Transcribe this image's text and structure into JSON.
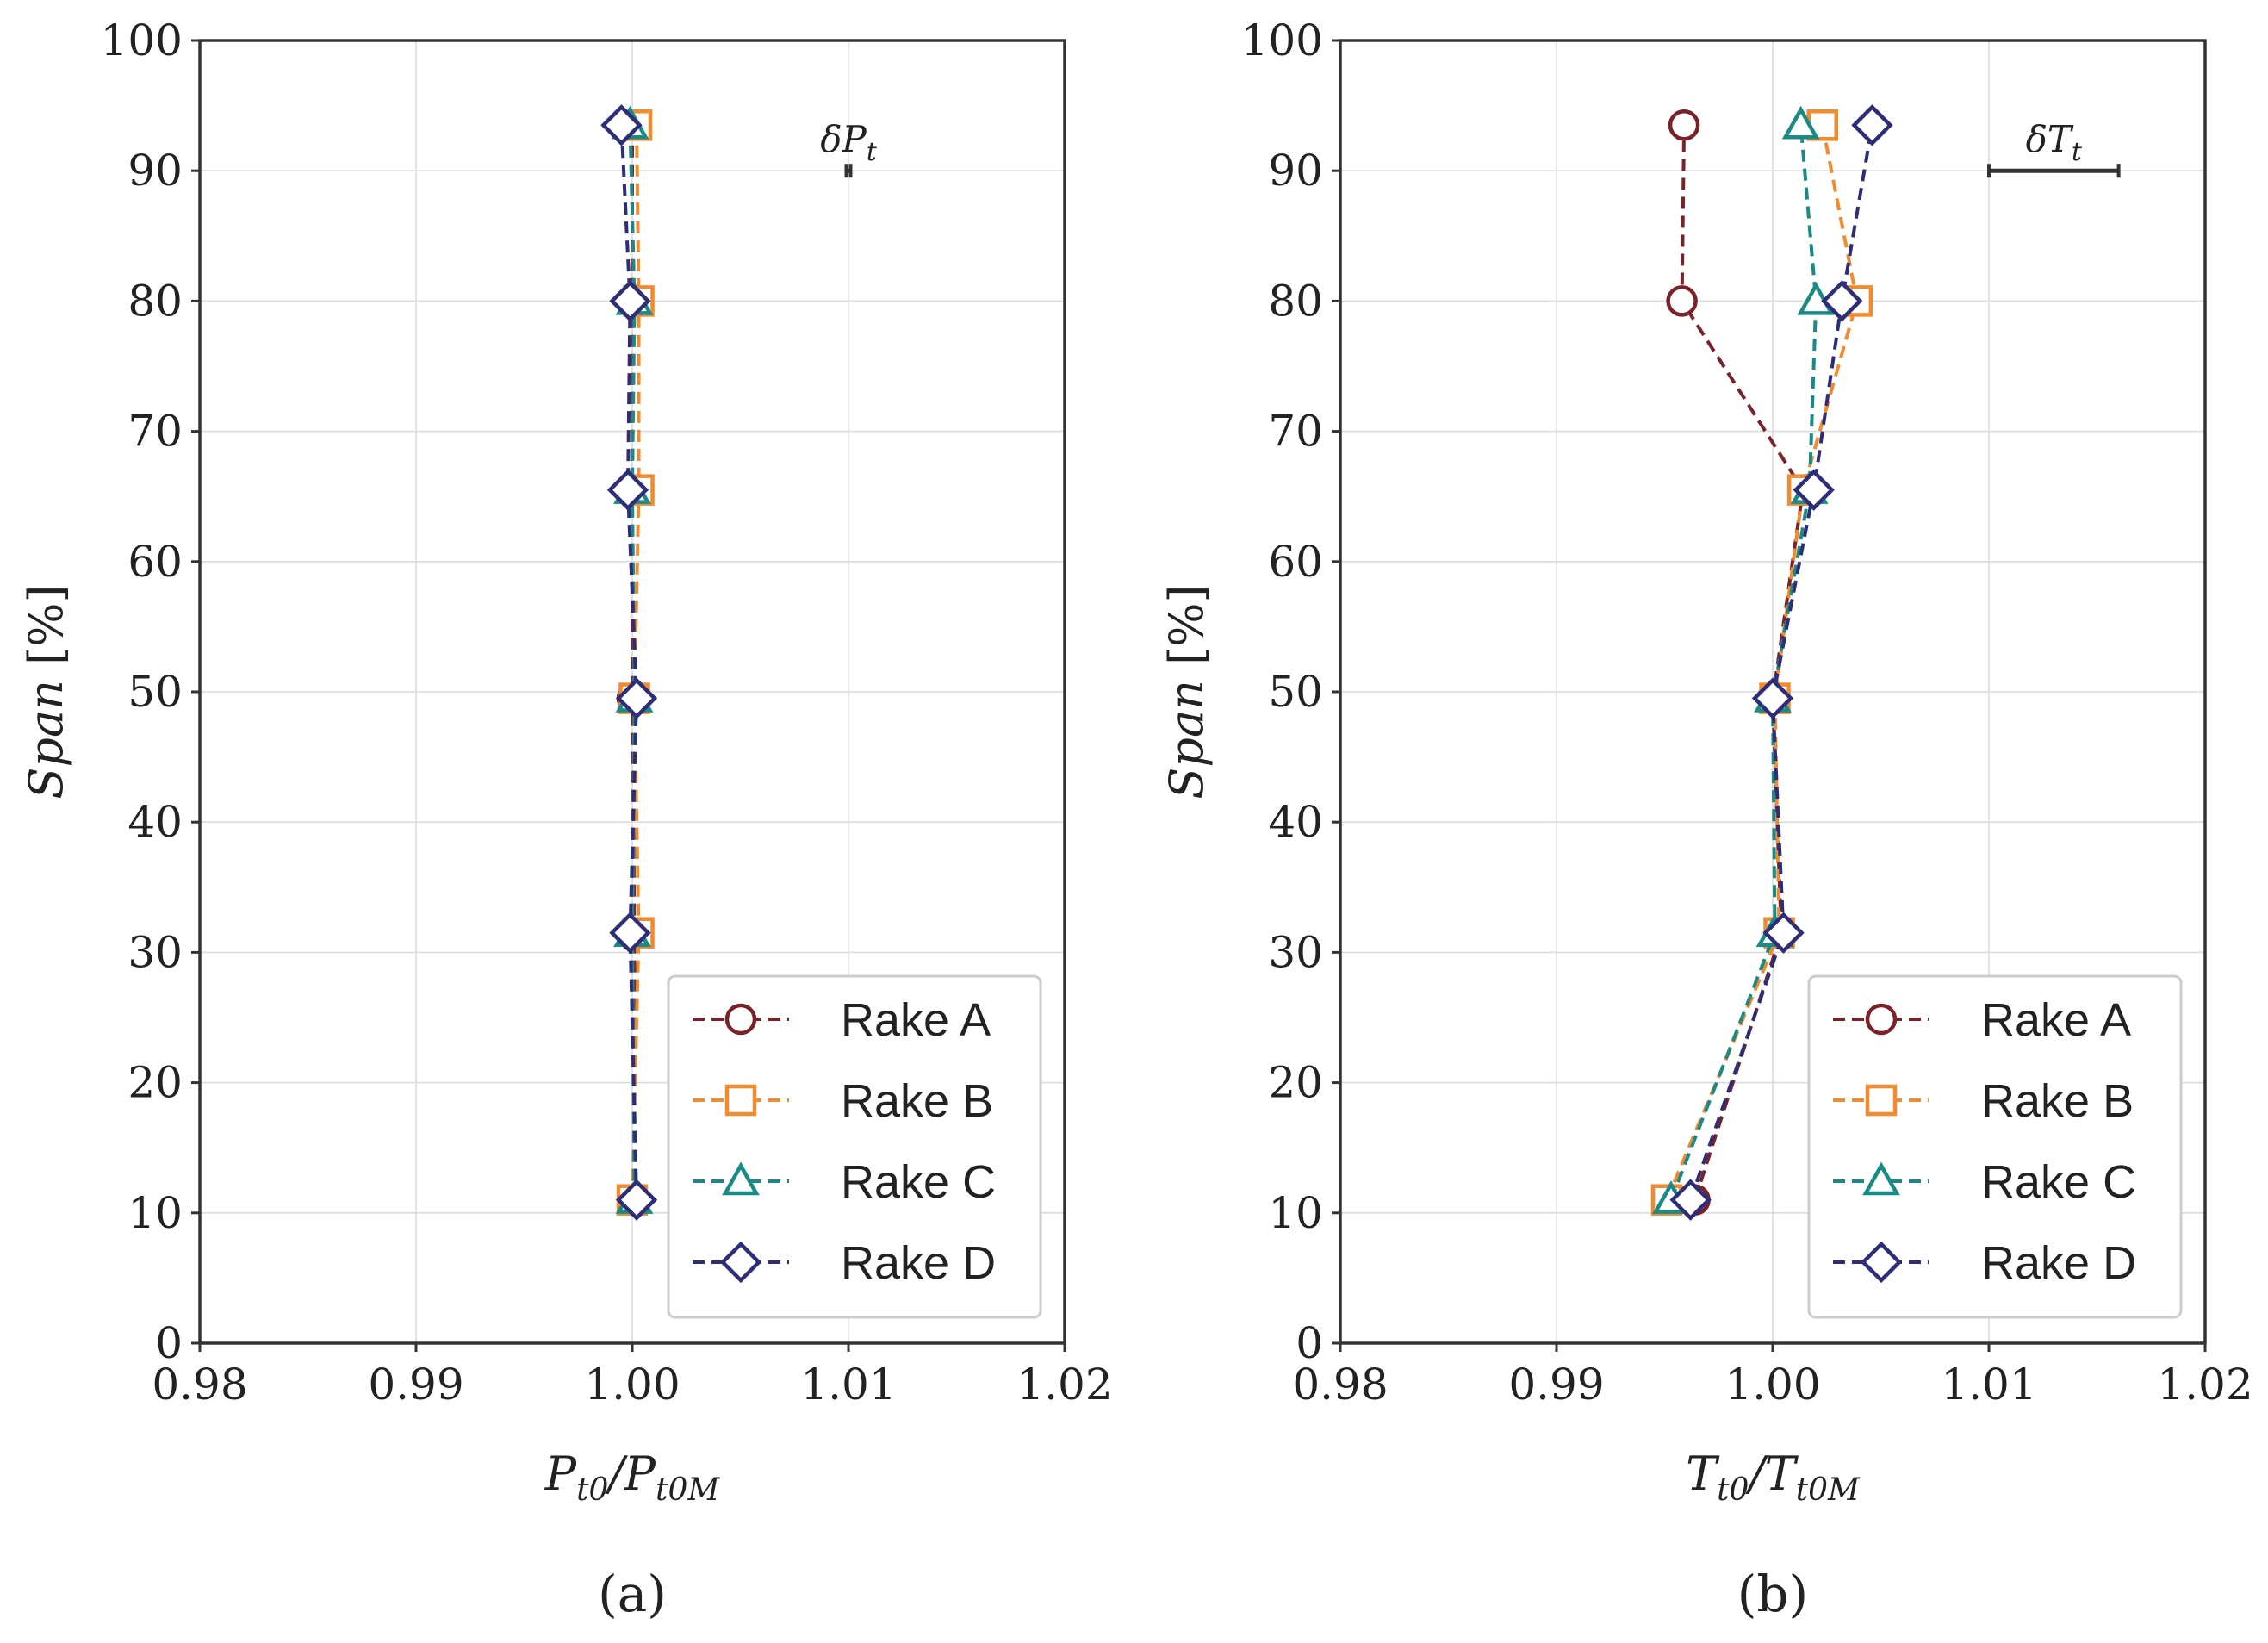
{
  "chart_data": [
    {
      "type": "line",
      "caption": "(a)",
      "xlabel": "P_{t0}/P_{t0M}",
      "xlabel_main": "P",
      "xlabel_sub1": "t0",
      "xlabel_slash": "/P",
      "xlabel_sub2": "t0M",
      "ylabel": "Span [%]",
      "ylabel_italic": "Span",
      "ylabel_rest": " [%]",
      "xlim": [
        0.98,
        1.02
      ],
      "ylim": [
        0,
        100
      ],
      "xticks": [
        0.98,
        0.99,
        1.0,
        1.01,
        1.02
      ],
      "xtick_labels": [
        "0.98",
        "0.99",
        "1.00",
        "1.01",
        "1.02"
      ],
      "yticks": [
        0,
        10,
        20,
        30,
        40,
        50,
        60,
        70,
        80,
        90,
        100
      ],
      "ytick_labels": [
        "0",
        "10",
        "20",
        "30",
        "40",
        "50",
        "60",
        "70",
        "80",
        "90",
        "100"
      ],
      "grid": true,
      "legend_position": "bottom-right",
      "annotation": {
        "label_main": "δP",
        "label_sub": "t",
        "x": 1.01,
        "y": 90,
        "err_half": 0.0001
      },
      "series": [
        {
          "name": "Rake A",
          "marker": "circle",
          "color": "#7b2228",
          "x": [
            1.0001,
            1.0001,
            1.0,
            1.0,
            1.0,
            1.0
          ],
          "y": [
            11,
            31.5,
            49.5,
            65.5,
            80,
            93.5
          ]
        },
        {
          "name": "Rake B",
          "marker": "square",
          "color": "#f28a2e",
          "x": [
            1.0,
            1.0003,
            1.0001,
            1.0003,
            1.0003,
            1.0002
          ],
          "y": [
            11,
            31.5,
            49.5,
            65.5,
            80,
            93.5
          ]
        },
        {
          "name": "Rake C",
          "marker": "triangle",
          "color": "#1a8a87",
          "x": [
            1.0001,
            1.0,
            1.0001,
            1.0,
            1.0001,
            0.9999
          ],
          "y": [
            11,
            31.5,
            49.5,
            65.5,
            80,
            93.5
          ]
        },
        {
          "name": "Rake D",
          "marker": "diamond",
          "color": "#2e2e78",
          "x": [
            1.0002,
            0.9999,
            1.0002,
            0.9998,
            0.9999,
            0.9995
          ],
          "y": [
            11,
            31.5,
            49.5,
            65.5,
            80,
            93.5
          ]
        }
      ]
    },
    {
      "type": "line",
      "caption": "(b)",
      "xlabel": "T_{t0}/T_{t0M}",
      "xlabel_main": "T",
      "xlabel_sub1": "t0",
      "xlabel_slash": "/T",
      "xlabel_sub2": "t0M",
      "ylabel": "Span [%]",
      "ylabel_italic": "Span",
      "ylabel_rest": " [%]",
      "xlim": [
        0.98,
        1.02
      ],
      "ylim": [
        0,
        100
      ],
      "xticks": [
        0.98,
        0.99,
        1.0,
        1.01,
        1.02
      ],
      "xtick_labels": [
        "0.98",
        "0.99",
        "1.00",
        "1.01",
        "1.02"
      ],
      "yticks": [
        0,
        10,
        20,
        30,
        40,
        50,
        60,
        70,
        80,
        90,
        100
      ],
      "ytick_labels": [
        "0",
        "10",
        "20",
        "30",
        "40",
        "50",
        "60",
        "70",
        "80",
        "90",
        "100"
      ],
      "grid": true,
      "legend_position": "bottom-right",
      "annotation": {
        "label_main": "δT",
        "label_sub": "t",
        "x": 1.013,
        "y": 90,
        "err_half": 0.003
      },
      "series": [
        {
          "name": "Rake A",
          "marker": "circle",
          "color": "#7b2228",
          "x": [
            0.9964,
            1.0004,
            1.0,
            1.0014,
            0.9958,
            0.9959
          ],
          "y": [
            11,
            31.5,
            49.5,
            65.5,
            80,
            93.5
          ]
        },
        {
          "name": "Rake B",
          "marker": "square",
          "color": "#f28a2e",
          "x": [
            0.9951,
            1.0003,
            1.0001,
            1.0014,
            1.0039,
            1.0023
          ],
          "y": [
            11,
            31.5,
            49.5,
            65.5,
            80,
            93.5
          ]
        },
        {
          "name": "Rake C",
          "marker": "triangle",
          "color": "#1a8a87",
          "x": [
            0.9953,
            1.0001,
            1.0,
            1.0017,
            1.002,
            1.0013
          ],
          "y": [
            11,
            31.5,
            49.5,
            65.5,
            80,
            93.5
          ]
        },
        {
          "name": "Rake D",
          "marker": "diamond",
          "color": "#2e2e78",
          "x": [
            0.9962,
            1.0005,
            1.0,
            1.0019,
            1.0032,
            1.0046
          ],
          "y": [
            11,
            31.5,
            49.5,
            65.5,
            80,
            93.5
          ]
        }
      ]
    }
  ]
}
